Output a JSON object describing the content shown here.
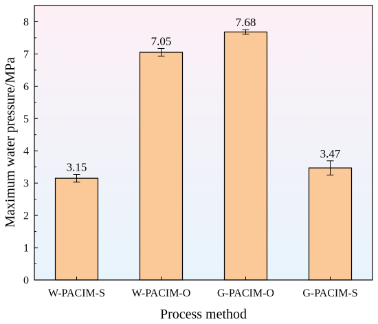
{
  "chart_data": {
    "type": "bar",
    "title": "",
    "xlabel": "Process method",
    "ylabel": "Maximum water pressure/MPa",
    "ylim": [
      0,
      8.5
    ],
    "yticks": [
      0,
      1,
      2,
      3,
      4,
      5,
      6,
      7,
      8
    ],
    "grid": false,
    "categories": [
      "W-PACIM-S",
      "W-PACIM-O",
      "G-PACIM-O",
      "G-PACIM-S"
    ],
    "values": [
      3.15,
      7.05,
      7.68,
      3.47
    ],
    "value_labels": [
      "3.15",
      "7.05",
      "7.68",
      "3.47"
    ],
    "errors": [
      0.12,
      0.12,
      0.07,
      0.22
    ],
    "colors": {
      "bar_fill": "#fbc897",
      "bar_stroke": "#000000",
      "background_top": "#fdf0f6",
      "background_bottom": "#e8f4fc"
    }
  }
}
